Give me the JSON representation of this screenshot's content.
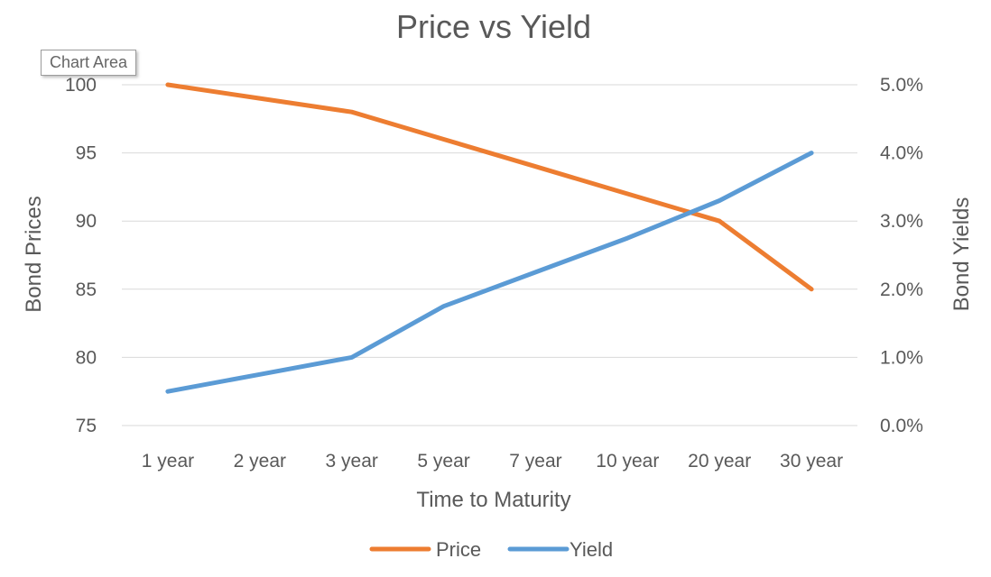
{
  "tooltip": "Chart Area",
  "colors": {
    "price": "#ED7D31",
    "yield": "#5B9BD5",
    "grid": "#D9D9D9",
    "text": "#595959"
  },
  "chart_data": {
    "type": "line",
    "title": "Price vs Yield",
    "xlabel": "Time to Maturity",
    "ylabel": "Bond Prices",
    "y2label": "Bond Yields",
    "categories": [
      "1 year",
      "2 year",
      "3 year",
      "5 year",
      "7 year",
      "10 year",
      "20 year",
      "30 year"
    ],
    "ylim": [
      75,
      100
    ],
    "y2lim": [
      0.0,
      5.0
    ],
    "yticks": [
      "75",
      "80",
      "85",
      "90",
      "95",
      "100"
    ],
    "y2ticks": [
      "0.0%",
      "1.0%",
      "2.0%",
      "3.0%",
      "4.0%",
      "5.0%"
    ],
    "grid": true,
    "legend": "bottom",
    "series": [
      {
        "name": "Price",
        "axis": "left",
        "color": "#ED7D31",
        "values": [
          100,
          99,
          98,
          96,
          94,
          92,
          90,
          85
        ]
      },
      {
        "name": "Yield",
        "axis": "right",
        "color": "#5B9BD5",
        "values": [
          0.5,
          0.75,
          1.0,
          1.75,
          2.25,
          2.75,
          3.3,
          4.0
        ]
      }
    ]
  }
}
